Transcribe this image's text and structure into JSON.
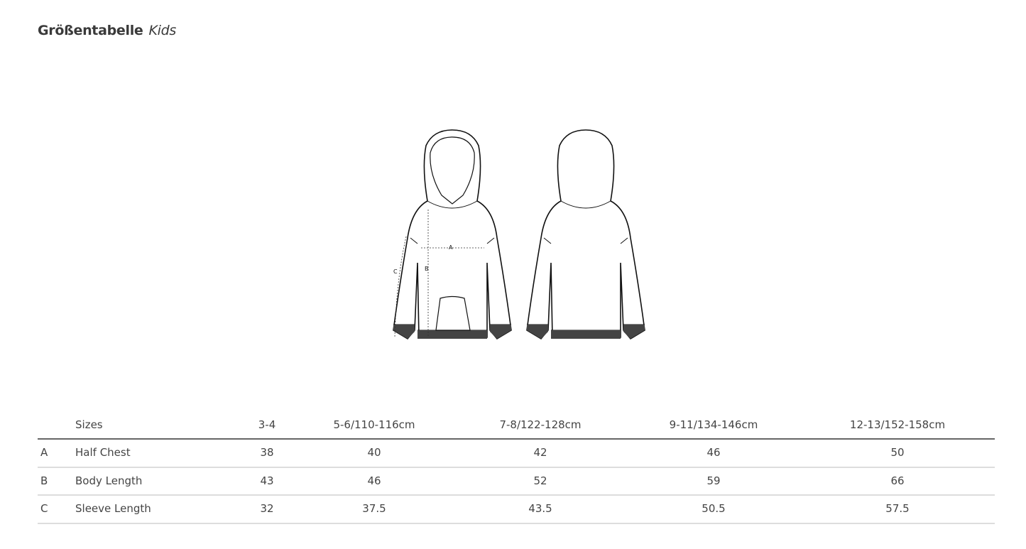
{
  "title": {
    "main": "Größentabelle",
    "sub": "Kids"
  },
  "diagram": {
    "labels": {
      "a": "A",
      "b": "B",
      "c": "C"
    }
  },
  "table": {
    "header": {
      "label": "Sizes",
      "sizes": [
        "3-4",
        "5-6/110-116cm",
        "7-8/122-128cm",
        "9-11/134-146cm",
        "12-13/152-158cm"
      ]
    },
    "rows": [
      {
        "key": "A",
        "label": "Half Chest",
        "values": [
          "38",
          "40",
          "42",
          "46",
          "50"
        ]
      },
      {
        "key": "B",
        "label": "Body Length",
        "values": [
          "43",
          "46",
          "52",
          "59",
          "66"
        ]
      },
      {
        "key": "C",
        "label": "Sleeve Length",
        "values": [
          "32",
          "37.5",
          "43.5",
          "50.5",
          "57.5"
        ]
      }
    ]
  }
}
